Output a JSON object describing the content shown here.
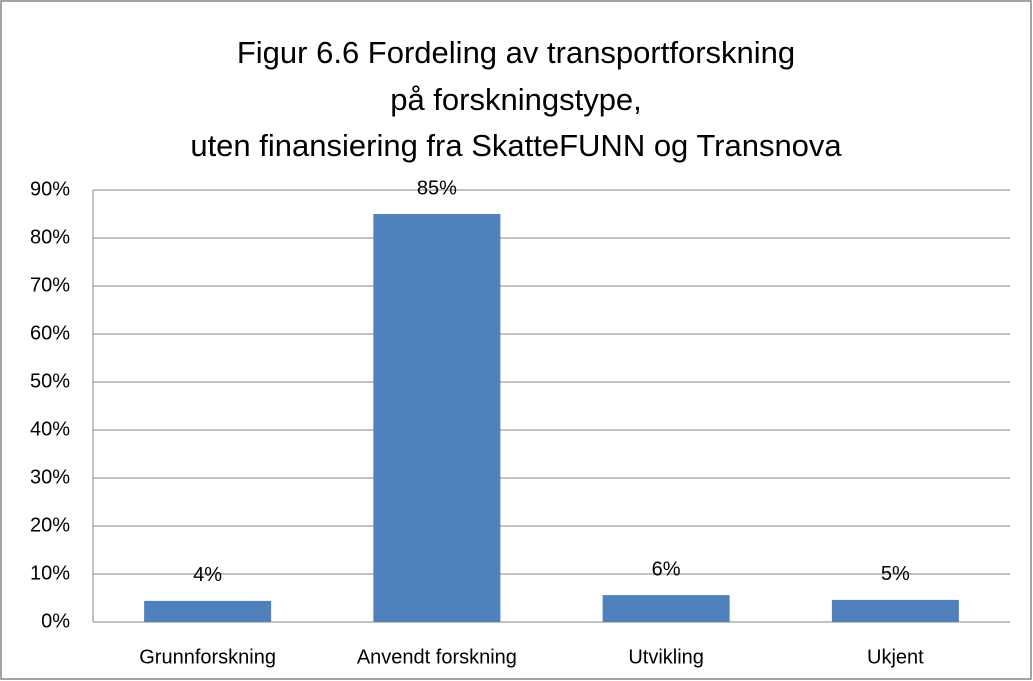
{
  "chart_data": {
    "type": "bar",
    "title": [
      "Figur 6.6 Fordeling av transportforskning",
      "på forskningstype,",
      "uten finansiering fra SkatteFUNN og Transnova"
    ],
    "categories": [
      "Grunnforskning",
      "Anvendt forskning",
      "Utvikling",
      "Ukjent"
    ],
    "values": [
      4.4,
      85,
      5.6,
      4.6
    ],
    "value_labels": [
      "4%",
      "85%",
      "6%",
      "5%"
    ],
    "color": "#4f81bd",
    "ylim": [
      0,
      90
    ],
    "yticks": [
      {
        "value": 0,
        "label": "0%"
      },
      {
        "value": 10,
        "label": "10%"
      },
      {
        "value": 20,
        "label": "20%"
      },
      {
        "value": 30,
        "label": "30%"
      },
      {
        "value": 40,
        "label": "40%"
      },
      {
        "value": 50,
        "label": "50%"
      },
      {
        "value": 60,
        "label": "60%"
      },
      {
        "value": 70,
        "label": "70%"
      },
      {
        "value": 80,
        "label": "80%"
      },
      {
        "value": 90,
        "label": "90%"
      }
    ],
    "grid": true
  }
}
